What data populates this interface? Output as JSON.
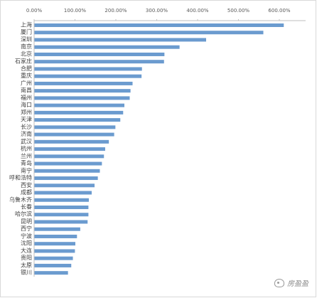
{
  "chart_data": {
    "type": "bar",
    "orientation": "horizontal",
    "title": "",
    "xlabel": "",
    "ylabel": "",
    "xlim": [
      0,
      6.4
    ],
    "x_ticks": [
      "0.00%",
      "100.00%",
      "200.00%",
      "300.00%",
      "400.00%",
      "500.00%",
      "600.00%"
    ],
    "grid": false,
    "bar_color": "#6b9bcf",
    "categories": [
      "上海",
      "厦门",
      "深圳",
      "南京",
      "北京",
      "石家庄",
      "合肥",
      "重庆",
      "广州",
      "南昌",
      "福州",
      "海口",
      "郑州",
      "天津",
      "长沙",
      "济南",
      "武汉",
      "杭州",
      "兰州",
      "青岛",
      "南宁",
      "呼和浩特",
      "西安",
      "成都",
      "乌鲁木齐",
      "长春",
      "哈尔滨",
      "昆明",
      "西宁",
      "宁波",
      "沈阳",
      "大连",
      "贵阳",
      "太原",
      "银川"
    ],
    "values": [
      6.1,
      5.6,
      4.2,
      3.55,
      3.18,
      3.17,
      2.63,
      2.62,
      2.4,
      2.35,
      2.33,
      2.2,
      2.17,
      2.1,
      1.98,
      1.95,
      1.82,
      1.73,
      1.7,
      1.65,
      1.6,
      1.55,
      1.47,
      1.4,
      1.33,
      1.32,
      1.32,
      1.3,
      1.12,
      1.04,
      1.0,
      0.99,
      0.94,
      0.9,
      0.82
    ]
  },
  "watermark": {
    "text": "房盈盈",
    "icon": "wechat-icon"
  }
}
